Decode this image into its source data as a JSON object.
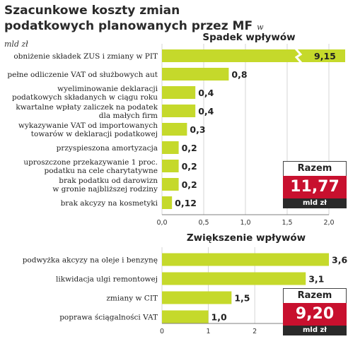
{
  "header": {
    "title": "Szacunkowe koszty zmian podatkowych planowanych przez MF",
    "unit": "w mld zł"
  },
  "colors": {
    "bar": "#c5d92b",
    "highlight": "#c8102e",
    "axis": "#555555",
    "grid": "#bbbbbb"
  },
  "chart_data": [
    {
      "type": "bar",
      "orientation": "horizontal",
      "title": "Spadek wpływów",
      "categories": [
        [
          "obniżenie składek ZUS i zmiany w PIT"
        ],
        [
          "pełne odliczenie VAT od służbowych aut"
        ],
        [
          "wyeliminowanie deklaracji",
          "podatkowych składanych w ciągu roku"
        ],
        [
          "kwartalne wpłaty zaliczek na podatek",
          "dla małych firm"
        ],
        [
          "wykazywanie VAT od importowanych",
          "towarów w deklaracji podatkowej"
        ],
        [
          "przyspieszona amortyzacja"
        ],
        [
          "uproszczone przekazywanie 1 proc.",
          "podatku na cele charytatywne"
        ],
        [
          "brak podatku od darowizn",
          "w gronie najbliższej rodziny"
        ],
        [
          "brak akcyzy na kosmetyki"
        ]
      ],
      "values": [
        9.15,
        0.8,
        0.4,
        0.4,
        0.3,
        0.2,
        0.2,
        0.2,
        0.12
      ],
      "value_labels": [
        "9,15",
        "0,8",
        "0,4",
        "0,4",
        "0,3",
        "0,2",
        "0,2",
        "0,2",
        "0,12"
      ],
      "xlim": [
        0,
        2.0
      ],
      "xticks": [
        0,
        0.5,
        1.0,
        1.5,
        2.0
      ],
      "xtick_labels": [
        "0,0",
        "0,5",
        "1,0",
        "1,5",
        "2,0"
      ],
      "broken_bar_index": 0,
      "total": {
        "label": "Razem",
        "value": "11,77",
        "unit": "mld zł"
      }
    },
    {
      "type": "bar",
      "orientation": "horizontal",
      "title": "Zwiększenie wpływów",
      "categories": [
        [
          "podwyżka akcyzy na oleje i benzynę"
        ],
        [
          "likwidacja ulgi remontowej"
        ],
        [
          "zmiany w CIT"
        ],
        [
          "poprawa ściągalności VAT"
        ]
      ],
      "values": [
        3.6,
        3.1,
        1.5,
        1.0
      ],
      "value_labels": [
        "3,6",
        "3,1",
        "1,5",
        "1,0"
      ],
      "xlim": [
        0,
        3.6
      ],
      "xticks": [
        0,
        1,
        2
      ],
      "xtick_labels": [
        "0",
        "1",
        "2"
      ],
      "total": {
        "label": "Razem",
        "value": "9,20",
        "unit": "mld zł"
      }
    }
  ]
}
